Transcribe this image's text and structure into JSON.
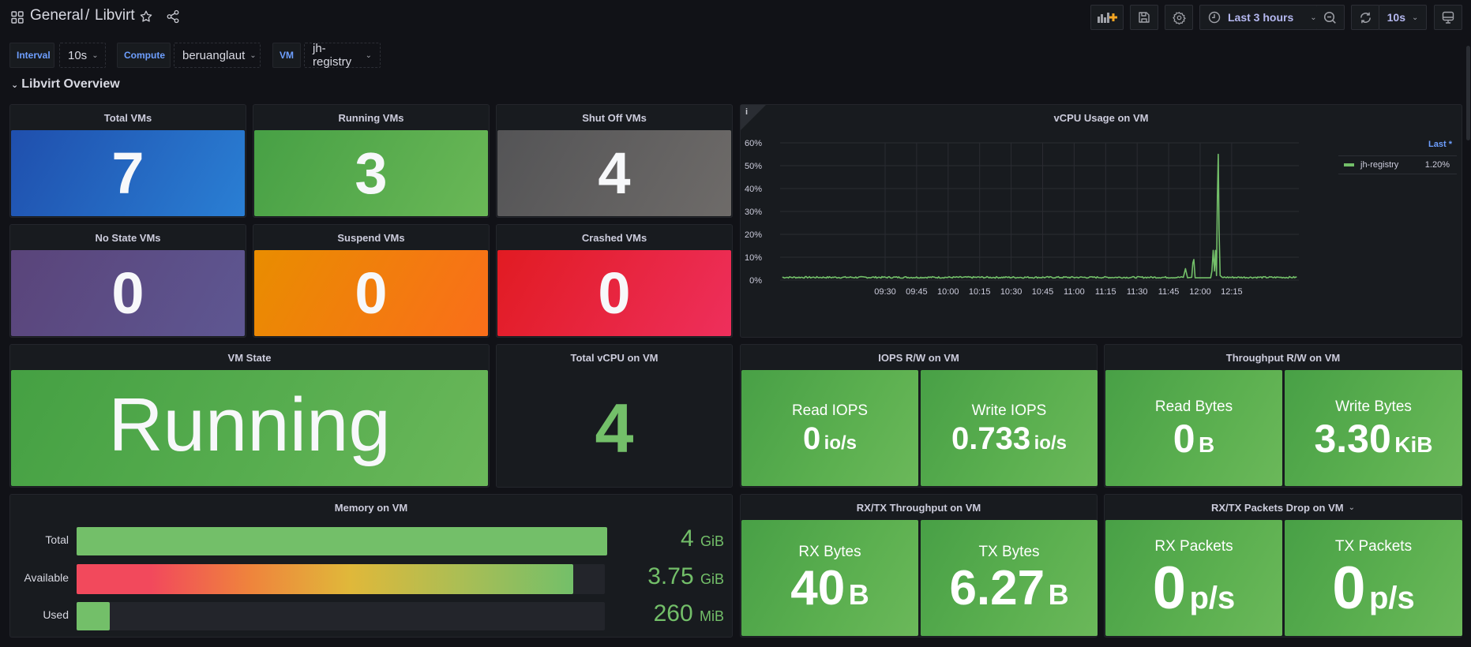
{
  "header": {
    "breadcrumb_folder": "General",
    "breadcrumb_sep": "/",
    "breadcrumb_dashboard": "Libvirt",
    "icons": [
      "apps-grid-icon",
      "star-icon",
      "share-icon"
    ],
    "toolbar": {
      "add_panel_icon": "add-panel-icon",
      "save_icon": "save-icon",
      "settings_icon": "gear-icon",
      "time_range_label": "Last 3 hours",
      "zoom_out_icon": "zoom-out-icon",
      "refresh_icon": "refresh-icon",
      "refresh_interval": "10s",
      "tv_mode_icon": "monitor-icon"
    }
  },
  "variables": [
    {
      "label": "Interval",
      "value": "10s"
    },
    {
      "label": "Compute",
      "value": "beruanglaut"
    },
    {
      "label": "VM",
      "value": "jh-registry"
    }
  ],
  "row": {
    "title": "Libvirt Overview",
    "collapsed_icon": "chevron-down-icon"
  },
  "stats": [
    {
      "title": "Total VMs",
      "value": "7",
      "color_from": "#1f4fad",
      "color_to": "#2a7fd4"
    },
    {
      "title": "Running VMs",
      "value": "3",
      "color_from": "#47a045",
      "color_to": "#6ab857"
    },
    {
      "title": "Shut Off VMs",
      "value": "4",
      "color_from": "#545456",
      "color_to": "#6e6b69"
    },
    {
      "title": "No State VMs",
      "value": "0",
      "color_from": "#5a447a",
      "color_to": "#5e5792"
    },
    {
      "title": "Suspend VMs",
      "value": "0",
      "color_from": "#e98d00",
      "color_to": "#fa6e1a"
    },
    {
      "title": "Crashed VMs",
      "value": "0",
      "color_from": "#e11b22",
      "color_to": "#ee2f5c"
    }
  ],
  "vm_state": {
    "title": "VM State",
    "value": "Running"
  },
  "total_vcpu": {
    "title": "Total vCPU on VM",
    "value": "4",
    "color": "#73bf69"
  },
  "iops": {
    "title": "IOPS R/W on VM",
    "items": [
      {
        "label": "Read IOPS",
        "value": "0",
        "unit": "io/s"
      },
      {
        "label": "Write IOPS",
        "value": "0.733",
        "unit": "io/s"
      }
    ]
  },
  "throughput": {
    "title": "Throughput R/W on VM",
    "items": [
      {
        "label": "Read Bytes",
        "value": "0",
        "unit": "B"
      },
      {
        "label": "Write Bytes",
        "value": "3.30",
        "unit": "KiB"
      }
    ]
  },
  "memory": {
    "title": "Memory on VM",
    "rows": [
      {
        "label": "Total",
        "value": "4",
        "unit": "GiB",
        "fraction": 1.0
      },
      {
        "label": "Available",
        "value": "3.75",
        "unit": "GiB",
        "fraction": 0.94
      },
      {
        "label": "Used",
        "value": "260",
        "unit": "MiB",
        "fraction": 0.063
      }
    ]
  },
  "rxtx": {
    "title": "RX/TX Throughput on VM",
    "items": [
      {
        "label": "RX Bytes",
        "value": "40",
        "unit": "B"
      },
      {
        "label": "TX Bytes",
        "value": "6.27",
        "unit": "B"
      }
    ]
  },
  "packets": {
    "title": "RX/TX Packets Drop on VM",
    "menu_icon": "chevron-down-icon",
    "items": [
      {
        "label": "RX Packets",
        "value": "0",
        "unit": "p/s"
      },
      {
        "label": "TX Packets",
        "value": "0",
        "unit": "p/s"
      }
    ]
  },
  "chart_data": {
    "type": "line",
    "title": "vCPU Usage on VM",
    "info_icon": "info-icon",
    "xlabel": "",
    "ylabel": "",
    "x_ticks": [
      "09:30",
      "09:45",
      "10:00",
      "10:15",
      "10:30",
      "10:45",
      "11:00",
      "11:15",
      "11:30",
      "11:45",
      "12:00",
      "12:15"
    ],
    "y_ticks": [
      "0%",
      "10%",
      "20%",
      "30%",
      "40%",
      "50%",
      "60%"
    ],
    "ylim": [
      0,
      60
    ],
    "xlim_minutes": [
      -50,
      197
    ],
    "x_tick_minutes": [
      0,
      15,
      30,
      45,
      60,
      75,
      90,
      105,
      120,
      135,
      150,
      165
    ],
    "grid": true,
    "legend": {
      "placement": "right",
      "header": "Last *",
      "entries": [
        {
          "name": "jh-registry",
          "last": "1.20%",
          "color": "#73bf69"
        }
      ]
    },
    "series": [
      {
        "name": "jh-registry",
        "color": "#73bf69",
        "baseline": 1.2,
        "spikes": [
          {
            "minute": 142,
            "value": 1.2
          },
          {
            "minute": 143,
            "value": 5.0
          },
          {
            "minute": 144,
            "value": 1.0
          },
          {
            "minute": 146,
            "value": 1.2
          },
          {
            "minute": 146.5,
            "value": 7.5
          },
          {
            "minute": 147,
            "value": 9.0
          },
          {
            "minute": 147.6,
            "value": 1.0
          },
          {
            "minute": 155,
            "value": 1.0
          },
          {
            "minute": 155.6,
            "value": 4.0
          },
          {
            "minute": 156.2,
            "value": 13.0
          },
          {
            "minute": 156.8,
            "value": 4.0
          },
          {
            "minute": 157.3,
            "value": 13.0
          },
          {
            "minute": 157.8,
            "value": 2.0
          },
          {
            "minute": 158.2,
            "value": 36.0
          },
          {
            "minute": 158.6,
            "value": 55.0
          },
          {
            "minute": 159.0,
            "value": 22.0
          },
          {
            "minute": 159.5,
            "value": 2.0
          },
          {
            "minute": 160.5,
            "value": 1.2
          }
        ]
      }
    ]
  }
}
